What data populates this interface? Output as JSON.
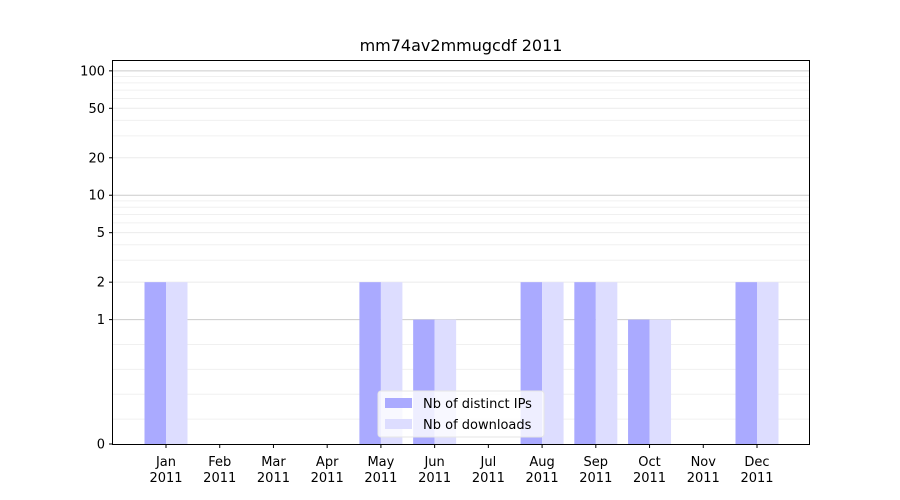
{
  "chart_data": {
    "type": "bar",
    "title": "mm74av2mmugcdf 2011",
    "xlabel": "",
    "ylabel": "",
    "y_scale": "symlog",
    "ylim": [
      0,
      120
    ],
    "y_ticks": [
      0,
      1,
      2,
      5,
      10,
      20,
      50,
      100
    ],
    "grid": "horizontal",
    "legend_position": "bottom-center",
    "categories": [
      {
        "month": "Jan",
        "year": "2011"
      },
      {
        "month": "Feb",
        "year": "2011"
      },
      {
        "month": "Mar",
        "year": "2011"
      },
      {
        "month": "Apr",
        "year": "2011"
      },
      {
        "month": "May",
        "year": "2011"
      },
      {
        "month": "Jun",
        "year": "2011"
      },
      {
        "month": "Jul",
        "year": "2011"
      },
      {
        "month": "Aug",
        "year": "2011"
      },
      {
        "month": "Sep",
        "year": "2011"
      },
      {
        "month": "Oct",
        "year": "2011"
      },
      {
        "month": "Nov",
        "year": "2011"
      },
      {
        "month": "Dec",
        "year": "2011"
      }
    ],
    "series": [
      {
        "name": "Nb of distinct IPs",
        "color": "#aaaaff",
        "values": [
          2,
          0,
          0,
          0,
          2,
          1,
          0,
          2,
          2,
          1,
          0,
          2
        ]
      },
      {
        "name": "Nb of downloads",
        "color": "#ddddff",
        "values": [
          2,
          0,
          0,
          0,
          2,
          1,
          0,
          2,
          2,
          1,
          0,
          2
        ]
      }
    ]
  }
}
